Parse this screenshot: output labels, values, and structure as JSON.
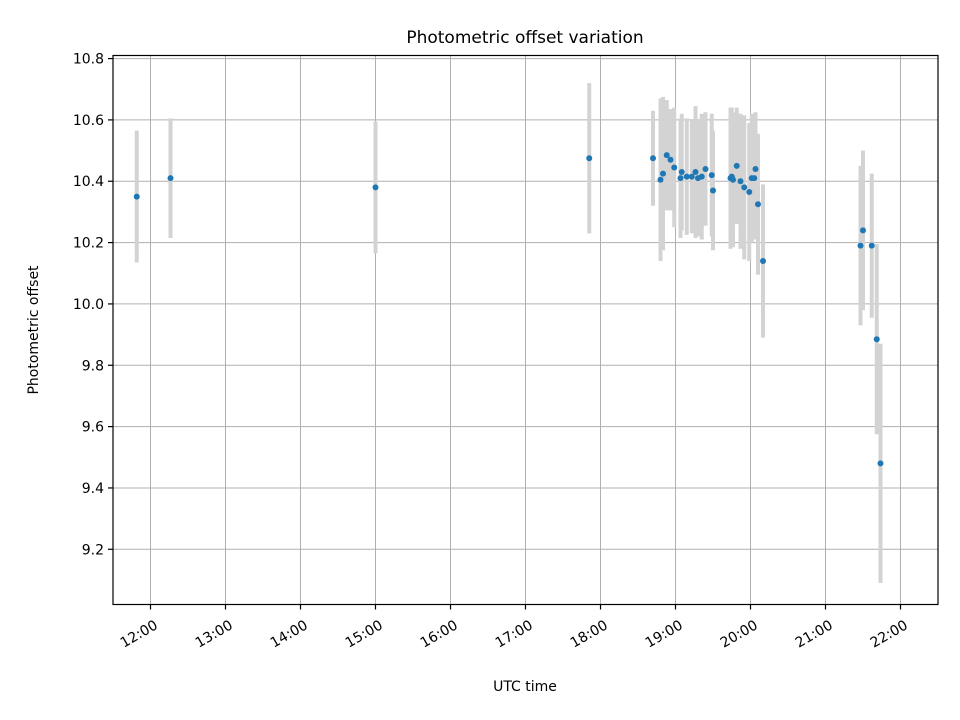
{
  "chart_data": {
    "type": "scatter",
    "title": "Photometric offset variation",
    "xlabel": "UTC time",
    "ylabel": "Photometric offset",
    "x_unit": "hours UTC",
    "xlim": [
      "11:30",
      "22:30"
    ],
    "ylim": [
      9.02,
      10.81
    ],
    "xticks": [
      "12:00",
      "13:00",
      "14:00",
      "15:00",
      "16:00",
      "17:00",
      "18:00",
      "19:00",
      "20:00",
      "21:00",
      "22:00"
    ],
    "yticks": [
      "9.2",
      "9.4",
      "9.6",
      "9.8",
      "10.0",
      "10.2",
      "10.4",
      "10.6",
      "10.8"
    ],
    "grid": true,
    "point_color": "#1f77b4",
    "errorbar_color": "#d3d3d3",
    "points": [
      {
        "time": "11:49",
        "y": 10.35,
        "yerr": 0.215
      },
      {
        "time": "12:16",
        "y": 10.41,
        "yerr": 0.195
      },
      {
        "time": "15:00",
        "y": 10.38,
        "yerr": 0.215
      },
      {
        "time": "17:51",
        "y": 10.475,
        "yerr": 0.245
      },
      {
        "time": "18:42",
        "y": 10.475,
        "yerr": 0.155
      },
      {
        "time": "18:48",
        "y": 10.405,
        "yerr": 0.265
      },
      {
        "time": "18:50",
        "y": 10.425,
        "yerr": 0.25
      },
      {
        "time": "18:53",
        "y": 10.485,
        "yerr": 0.18
      },
      {
        "time": "18:56",
        "y": 10.47,
        "yerr": 0.165
      },
      {
        "time": "18:59",
        "y": 10.445,
        "yerr": 0.195
      },
      {
        "time": "19:04",
        "y": 10.41,
        "yerr": 0.195
      },
      {
        "time": "19:05",
        "y": 10.43,
        "yerr": 0.19
      },
      {
        "time": "19:09",
        "y": 10.415,
        "yerr": 0.19
      },
      {
        "time": "19:13",
        "y": 10.415,
        "yerr": 0.185
      },
      {
        "time": "19:16",
        "y": 10.43,
        "yerr": 0.215
      },
      {
        "time": "19:18",
        "y": 10.41,
        "yerr": 0.19
      },
      {
        "time": "19:21",
        "y": 10.415,
        "yerr": 0.205
      },
      {
        "time": "19:24",
        "y": 10.44,
        "yerr": 0.185
      },
      {
        "time": "19:29",
        "y": 10.42,
        "yerr": 0.2
      },
      {
        "time": "19:30",
        "y": 10.37,
        "yerr": 0.195
      },
      {
        "time": "19:44",
        "y": 10.41,
        "yerr": 0.23
      },
      {
        "time": "19:45",
        "y": 10.415,
        "yerr": 0.225
      },
      {
        "time": "19:46",
        "y": 10.405,
        "yerr": 0.22
      },
      {
        "time": "19:49",
        "y": 10.45,
        "yerr": 0.19
      },
      {
        "time": "19:52",
        "y": 10.4,
        "yerr": 0.22
      },
      {
        "time": "19:55",
        "y": 10.38,
        "yerr": 0.235
      },
      {
        "time": "19:59",
        "y": 10.365,
        "yerr": 0.225
      },
      {
        "time": "20:01",
        "y": 10.41,
        "yerr": 0.21
      },
      {
        "time": "20:03",
        "y": 10.41,
        "yerr": 0.2
      },
      {
        "time": "20:04",
        "y": 10.44,
        "yerr": 0.185
      },
      {
        "time": "20:06",
        "y": 10.325,
        "yerr": 0.23
      },
      {
        "time": "20:10",
        "y": 10.14,
        "yerr": 0.25
      },
      {
        "time": "21:28",
        "y": 10.19,
        "yerr": 0.26
      },
      {
        "time": "21:30",
        "y": 10.24,
        "yerr": 0.26
      },
      {
        "time": "21:37",
        "y": 10.19,
        "yerr": 0.235
      },
      {
        "time": "21:41",
        "y": 9.885,
        "yerr": 0.31
      },
      {
        "time": "21:44",
        "y": 9.48,
        "yerr": 0.39
      }
    ]
  }
}
